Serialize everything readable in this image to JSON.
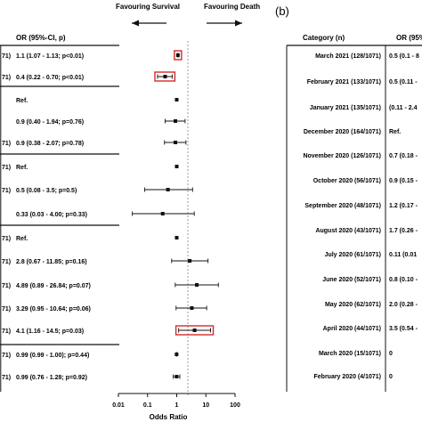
{
  "chart_data": [
    {
      "type": "forest",
      "panel_label": "",
      "direction_left": "Favouring Survival",
      "direction_right": "Favouring Death",
      "column_header": "OR (95%-CI, p)",
      "xlabel": "Odds  Ratio",
      "x_scale": "log",
      "xlim": [
        0.01,
        100
      ],
      "xticks": [
        "0.01",
        "0.1",
        "1",
        "10",
        "100"
      ],
      "reference_line": 1,
      "row_labels_visible": [
        "71)",
        "71)",
        "",
        "",
        "71)",
        "71)",
        "71)",
        "",
        "71)",
        "71)",
        "71)",
        "71)",
        "71)",
        "71)",
        "71)",
        "71)"
      ],
      "rows": [
        {
          "text": "1.1 (1.07 - 1.13; p<0.01)",
          "or": 1.1,
          "lo": 1.07,
          "hi": 1.13,
          "highlight": true
        },
        {
          "text": "0.4 (0.22 - 0.70; p<0.01)",
          "or": 0.4,
          "lo": 0.22,
          "hi": 0.7,
          "highlight": true
        },
        {
          "text": "Ref.",
          "or": 1,
          "lo": null,
          "hi": null,
          "highlight": false
        },
        {
          "text": "0.9 (0.40 - 1.94; p=0.76)",
          "or": 0.9,
          "lo": 0.4,
          "hi": 1.94,
          "highlight": false
        },
        {
          "text": "0.9 (0.38 - 2.07; p=0.78)",
          "or": 0.9,
          "lo": 0.38,
          "hi": 2.07,
          "highlight": false
        },
        {
          "text": "Ref.",
          "or": 1,
          "lo": null,
          "hi": null,
          "highlight": false
        },
        {
          "text": "0.5 (0.08 - 3.5; p=0.5)",
          "or": 0.5,
          "lo": 0.08,
          "hi": 3.5,
          "highlight": false
        },
        {
          "text": "0.33 (0.03 - 4.00; p=0.33)",
          "or": 0.33,
          "lo": 0.03,
          "hi": 4.0,
          "highlight": false
        },
        {
          "text": "Ref.",
          "or": 1,
          "lo": null,
          "hi": null,
          "highlight": false
        },
        {
          "text": "2.8 (0.67 - 11.85; p=0.16)",
          "or": 2.8,
          "lo": 0.67,
          "hi": 11.85,
          "highlight": false
        },
        {
          "text": "4.89 (0.89 - 26.84; p=0.07)",
          "or": 4.89,
          "lo": 0.89,
          "hi": 26.84,
          "highlight": false
        },
        {
          "text": "3.29 (0.95 - 10.64; p=0.06)",
          "or": 3.29,
          "lo": 0.95,
          "hi": 10.64,
          "highlight": false
        },
        {
          "text": "4.1 (1.16 - 14.5; p=0.03)",
          "or": 4.1,
          "lo": 1.16,
          "hi": 14.5,
          "highlight": true
        },
        {
          "text": "0.99 (0.99 - 1.00); p=0.44)",
          "or": 0.99,
          "lo": 0.99,
          "hi": 1.0,
          "highlight": false
        },
        {
          "text": "0.99 (0.76 - 1.28; p=0.92)",
          "or": 0.99,
          "lo": 0.76,
          "hi": 1.28,
          "highlight": false
        }
      ]
    },
    {
      "type": "forest",
      "panel_label": "(b)",
      "column_headers": [
        "Category (n)",
        "OR (95%"
      ],
      "rows": [
        {
          "category": "March 2021 (128/1071)",
          "or_text": "0.5 (0.1 - 8"
        },
        {
          "category": "February 2021 (133/1071)",
          "or_text": "0.5 (0.11 -"
        },
        {
          "category": "January 2021 (135/1071)",
          "or_text": "(0.11 - 2.4"
        },
        {
          "category": "December 2020 (164/1071)",
          "or_text": "Ref."
        },
        {
          "category": "November 2020 (126/1071)",
          "or_text": "0.7 (0.18 -"
        },
        {
          "category": "October 2020 (56/1071)",
          "or_text": "0.9 (0.15 -"
        },
        {
          "category": "September 2020 (48/1071)",
          "or_text": "1.2 (0.17 -"
        },
        {
          "category": "August 2020 (43/1071)",
          "or_text": "1.7 (0.26 -"
        },
        {
          "category": "July 2020 (61/1071)",
          "or_text": "0.11 (0.01"
        },
        {
          "category": "June 2020 (52/1071)",
          "or_text": "0.8 (0.10 -"
        },
        {
          "category": "May 2020 (62/1071)",
          "or_text": "2.0 (0.28 -"
        },
        {
          "category": "April 2020 (44/1071)",
          "or_text": "3.5 (0.54 -"
        },
        {
          "category": "March 2020 (15/1071)",
          "or_text": "0"
        },
        {
          "category": "February 2020 (4/1071)",
          "or_text": "0"
        }
      ]
    }
  ],
  "colors": {
    "highlight": "#d42a2a",
    "ink": "#111111",
    "reference_line": "#9a9a9a"
  }
}
